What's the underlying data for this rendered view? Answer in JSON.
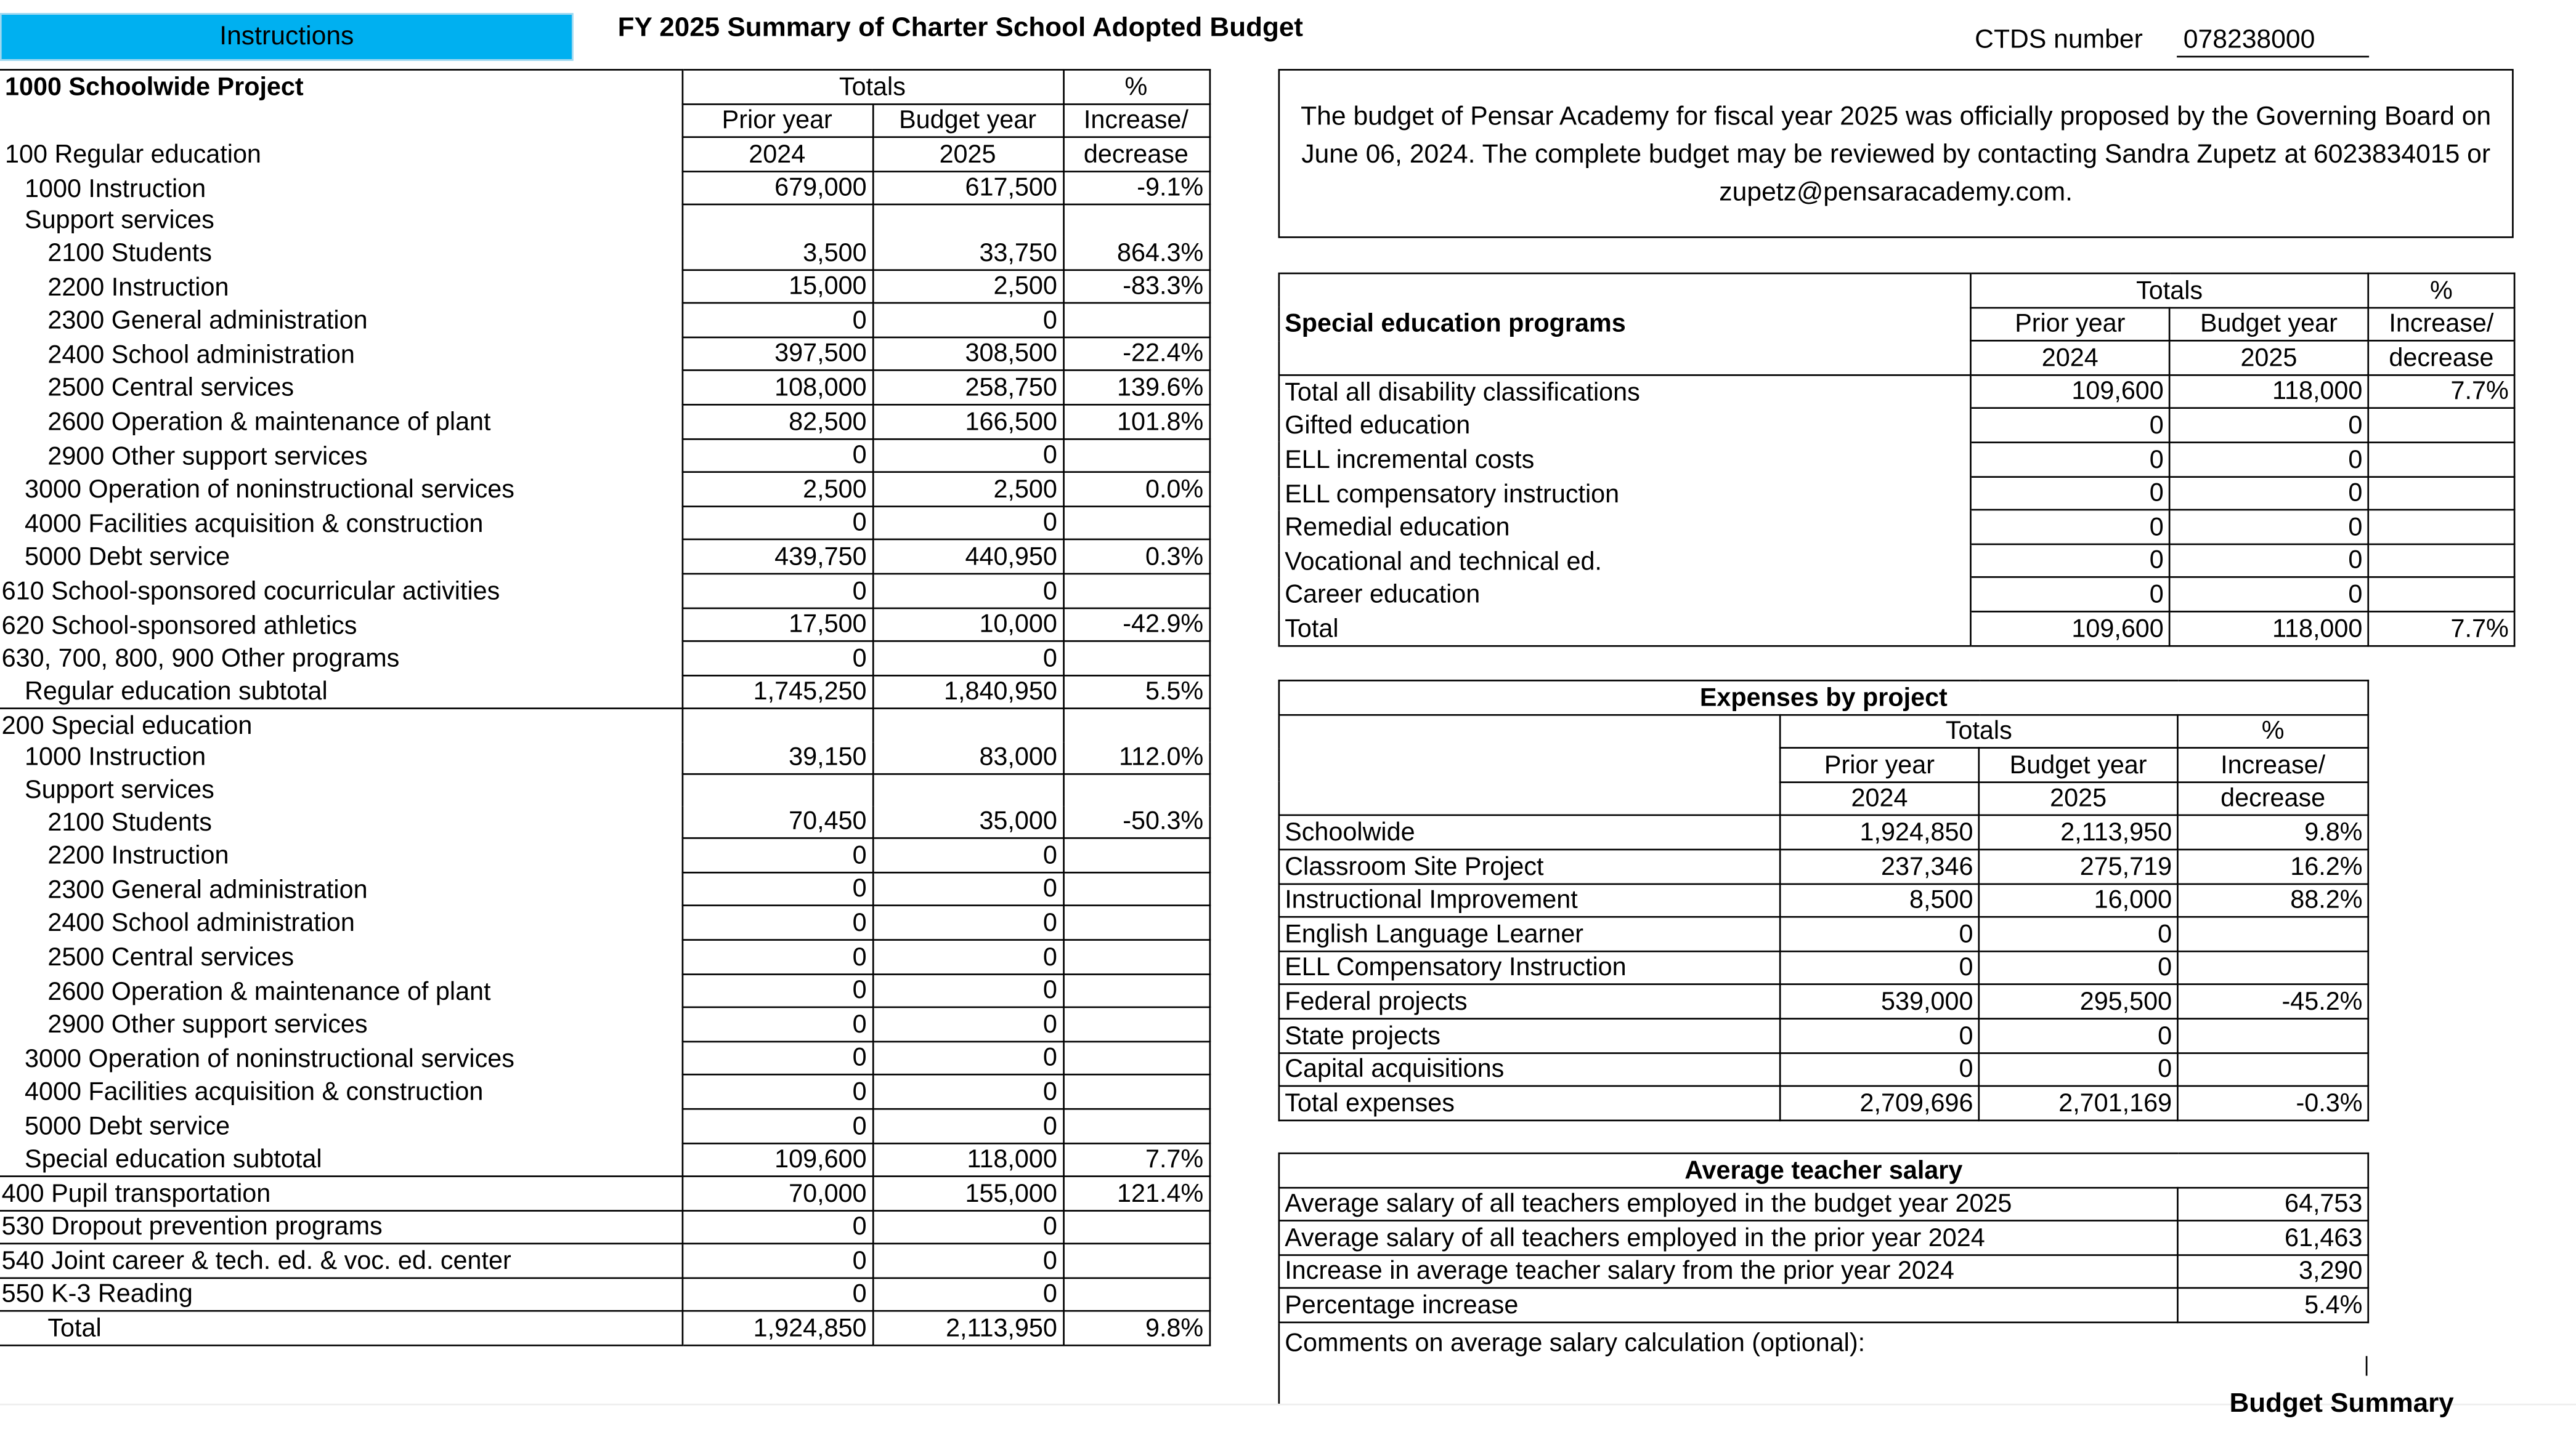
{
  "header": {
    "instructions_label": "Instructions",
    "title": "FY 2025 Summary of Charter School Adopted Budget",
    "ctds_label": "CTDS number",
    "ctds_value": "078238000",
    "accent_color": "#00B0F0"
  },
  "statement": "The budget of Pensar Academy for fiscal year 2025 was officially proposed by the Governing Board on June 06, 2024. The complete budget may be reviewed by contacting Sandra Zupetz at 6023834015 or zupetz@pensaracademy.com.",
  "columns": {
    "totals": "Totals",
    "prior": [
      "Prior year",
      "2024"
    ],
    "budget": [
      "Budget year",
      "2025"
    ],
    "pct": [
      "%",
      "Increase/",
      "decrease"
    ]
  },
  "left_table": {
    "title": "1000 Schoolwide Project",
    "first_label": "100 Regular education",
    "rows": [
      {
        "label": "1000 Instruction",
        "level": 1,
        "prior": "679,000",
        "budget": "617,500",
        "pct": "-9.1%"
      },
      {
        "label": "Support services",
        "level": 1,
        "group": true
      },
      {
        "label": "2100 Students",
        "level": 2,
        "prior": "3,500",
        "budget": "33,750",
        "pct": "864.3%"
      },
      {
        "label": "2200 Instruction",
        "level": 2,
        "prior": "15,000",
        "budget": "2,500",
        "pct": "-83.3%"
      },
      {
        "label": "2300 General administration",
        "level": 2,
        "prior": "0",
        "budget": "0",
        "pct": ""
      },
      {
        "label": "2400 School administration",
        "level": 2,
        "prior": "397,500",
        "budget": "308,500",
        "pct": "-22.4%"
      },
      {
        "label": "2500 Central services",
        "level": 2,
        "prior": "108,000",
        "budget": "258,750",
        "pct": "139.6%"
      },
      {
        "label": "2600 Operation & maintenance of plant",
        "level": 2,
        "prior": "82,500",
        "budget": "166,500",
        "pct": "101.8%"
      },
      {
        "label": "2900 Other support services",
        "level": 2,
        "prior": "0",
        "budget": "0",
        "pct": ""
      },
      {
        "label": "3000 Operation of noninstructional services",
        "level": 1,
        "prior": "2,500",
        "budget": "2,500",
        "pct": "0.0%"
      },
      {
        "label": "4000 Facilities acquisition & construction",
        "level": 1,
        "prior": "0",
        "budget": "0",
        "pct": ""
      },
      {
        "label": "5000 Debt service",
        "level": 1,
        "prior": "439,750",
        "budget": "440,950",
        "pct": "0.3%"
      },
      {
        "label": "610 School-sponsored cocurricular activities",
        "level": 0,
        "prior": "0",
        "budget": "0",
        "pct": ""
      },
      {
        "label": "620 School-sponsored athletics",
        "level": 0,
        "prior": "17,500",
        "budget": "10,000",
        "pct": "-42.9%"
      },
      {
        "label": "630, 700, 800, 900 Other programs",
        "level": 0,
        "prior": "0",
        "budget": "0",
        "pct": ""
      },
      {
        "label": "Regular education subtotal",
        "level": 1,
        "prior": "1,745,250",
        "budget": "1,840,950",
        "pct": "5.5%"
      },
      {
        "label": "200 Special education",
        "level": 0,
        "group": true,
        "rule": true
      },
      {
        "label": "1000 Instruction",
        "level": 1,
        "prior": "39,150",
        "budget": "83,000",
        "pct": "112.0%"
      },
      {
        "label": "Support services",
        "level": 1,
        "group": true
      },
      {
        "label": "2100 Students",
        "level": 2,
        "prior": "70,450",
        "budget": "35,000",
        "pct": "-50.3%"
      },
      {
        "label": "2200 Instruction",
        "level": 2,
        "prior": "0",
        "budget": "0",
        "pct": ""
      },
      {
        "label": "2300 General administration",
        "level": 2,
        "prior": "0",
        "budget": "0",
        "pct": ""
      },
      {
        "label": "2400 School administration",
        "level": 2,
        "prior": "0",
        "budget": "0",
        "pct": ""
      },
      {
        "label": "2500 Central services",
        "level": 2,
        "prior": "0",
        "budget": "0",
        "pct": ""
      },
      {
        "label": "2600 Operation & maintenance of plant",
        "level": 2,
        "prior": "0",
        "budget": "0",
        "pct": ""
      },
      {
        "label": "2900 Other support services",
        "level": 2,
        "prior": "0",
        "budget": "0",
        "pct": ""
      },
      {
        "label": "3000 Operation of noninstructional services",
        "level": 1,
        "prior": "0",
        "budget": "0",
        "pct": ""
      },
      {
        "label": "4000 Facilities acquisition & construction",
        "level": 1,
        "prior": "0",
        "budget": "0",
        "pct": ""
      },
      {
        "label": "5000 Debt service",
        "level": 1,
        "prior": "0",
        "budget": "0",
        "pct": ""
      },
      {
        "label": "Special education subtotal",
        "level": 1,
        "prior": "109,600",
        "budget": "118,000",
        "pct": "7.7%"
      },
      {
        "label": "400 Pupil transportation",
        "level": 0,
        "prior": "70,000",
        "budget": "155,000",
        "pct": "121.4%",
        "rule": true
      },
      {
        "label": "530 Dropout prevention programs",
        "level": 0,
        "prior": "0",
        "budget": "0",
        "pct": "",
        "rule": true
      },
      {
        "label": "540 Joint career & tech. ed. & voc. ed. center",
        "level": 0,
        "prior": "0",
        "budget": "0",
        "pct": "",
        "rule": true
      },
      {
        "label": "550 K-3 Reading",
        "level": 0,
        "prior": "0",
        "budget": "0",
        "pct": "",
        "rule": true
      },
      {
        "label": "Total",
        "level": 2,
        "prior": "1,924,850",
        "budget": "2,113,950",
        "pct": "9.8%",
        "rule": true,
        "last": true
      }
    ]
  },
  "special_ed": {
    "title": "Special education programs",
    "rows": [
      {
        "label": "Total all disability classifications",
        "prior": "109,600",
        "budget": "118,000",
        "pct": "7.7%"
      },
      {
        "label": "Gifted education",
        "prior": "0",
        "budget": "0",
        "pct": ""
      },
      {
        "label": "ELL incremental costs",
        "prior": "0",
        "budget": "0",
        "pct": ""
      },
      {
        "label": "ELL compensatory instruction",
        "prior": "0",
        "budget": "0",
        "pct": ""
      },
      {
        "label": "Remedial education",
        "prior": "0",
        "budget": "0",
        "pct": ""
      },
      {
        "label": "Vocational and technical ed.",
        "prior": "0",
        "budget": "0",
        "pct": ""
      },
      {
        "label": "Career education",
        "prior": "0",
        "budget": "0",
        "pct": ""
      },
      {
        "label": "Total",
        "prior": "109,600",
        "budget": "118,000",
        "pct": "7.7%"
      }
    ]
  },
  "expenses": {
    "title": "Expenses by project",
    "rows": [
      {
        "label": "Schoolwide",
        "prior": "1,924,850",
        "budget": "2,113,950",
        "pct": "9.8%"
      },
      {
        "label": "Classroom Site Project",
        "prior": "237,346",
        "budget": "275,719",
        "pct": "16.2%"
      },
      {
        "label": "Instructional Improvement",
        "prior": "8,500",
        "budget": "16,000",
        "pct": "88.2%"
      },
      {
        "label": "English Language Learner",
        "prior": "0",
        "budget": "0",
        "pct": ""
      },
      {
        "label": "ELL Compensatory Instruction",
        "prior": "0",
        "budget": "0",
        "pct": ""
      },
      {
        "label": "Federal projects",
        "prior": "539,000",
        "budget": "295,500",
        "pct": "-45.2%"
      },
      {
        "label": "State projects",
        "prior": "0",
        "budget": "0",
        "pct": ""
      },
      {
        "label": "Capital acquisitions",
        "prior": "0",
        "budget": "0",
        "pct": ""
      },
      {
        "label": "Total expenses",
        "prior": "2,709,696",
        "budget": "2,701,169",
        "pct": "-0.3%"
      }
    ]
  },
  "salary": {
    "title": "Average teacher salary",
    "rows": [
      {
        "label": "Average salary of all teachers employed in the budget year 2025",
        "value": "64,753"
      },
      {
        "label": "Average salary of all teachers employed in the prior year 2024",
        "value": "61,463"
      },
      {
        "label": "Increase in average teacher salary from the prior year 2024",
        "value": "3,290"
      },
      {
        "label": "Percentage increase",
        "value": "5.4%"
      }
    ],
    "comments_label": "Comments on average salary calculation (optional):"
  },
  "footer": "Budget Summary"
}
